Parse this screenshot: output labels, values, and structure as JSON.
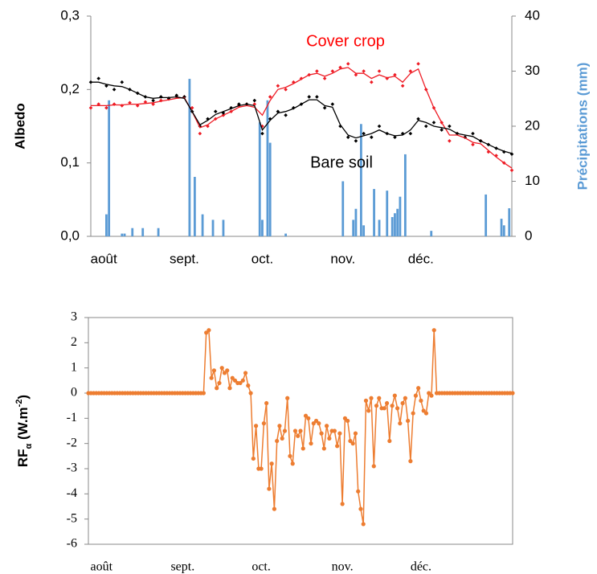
{
  "chart_data": [
    {
      "type": "combo",
      "ylabel": "Albedo",
      "y2label": "Précipitations (mm)",
      "xlim": [
        -5,
        157
      ],
      "xticks": [
        {
          "value": 0,
          "label": "août"
        },
        {
          "value": 31,
          "label": "sept."
        },
        {
          "value": 61,
          "label": "oct."
        },
        {
          "value": 92,
          "label": "nov."
        },
        {
          "value": 122,
          "label": "déc."
        }
      ],
      "ylim": [
        0,
        0.3
      ],
      "yticks": [
        {
          "value": 0,
          "label": "0,0"
        },
        {
          "value": 0.1,
          "label": "0,1"
        },
        {
          "value": 0.2,
          "label": "0,2"
        },
        {
          "value": 0.3,
          "label": "0,3"
        }
      ],
      "y2lim": [
        0,
        40
      ],
      "y2ticks": [
        0,
        10,
        20,
        30,
        40
      ],
      "x": [
        -5,
        -2,
        1,
        4,
        7,
        10,
        13,
        16,
        19,
        22,
        25,
        28,
        31,
        34,
        37,
        40,
        43,
        46,
        49,
        52,
        55,
        58,
        61,
        64,
        67,
        70,
        73,
        76,
        79,
        82,
        85,
        88,
        91,
        94,
        97,
        100,
        103,
        106,
        109,
        112,
        115,
        118,
        121,
        124,
        127,
        130,
        133,
        136,
        139,
        142,
        145,
        148,
        151,
        154,
        157
      ],
      "series": [
        {
          "type": "scatter",
          "color": "#ee1c25",
          "values": [
            0.175,
            0.18,
            0.175,
            0.18,
            0.178,
            0.182,
            0.178,
            0.183,
            0.18,
            0.185,
            0.187,
            0.19,
            0.19,
            0.175,
            0.14,
            0.15,
            0.16,
            0.165,
            0.17,
            0.178,
            0.18,
            0.18,
            0.15,
            0.19,
            0.205,
            0.2,
            0.21,
            0.215,
            0.22,
            0.225,
            0.215,
            0.225,
            0.23,
            0.235,
            0.22,
            0.225,
            0.21,
            0.225,
            0.215,
            0.22,
            0.205,
            0.225,
            0.235,
            0.2,
            0.175,
            0.155,
            0.13,
            0.14,
            0.135,
            0.125,
            0.13,
            0.115,
            0.11,
            0.1,
            0.09
          ]
        },
        {
          "type": "line",
          "color": "#ee1c25",
          "values": [
            0.178,
            0.178,
            0.178,
            0.179,
            0.179,
            0.18,
            0.18,
            0.181,
            0.182,
            0.184,
            0.186,
            0.188,
            0.189,
            0.17,
            0.148,
            0.152,
            0.16,
            0.165,
            0.17,
            0.176,
            0.178,
            0.176,
            0.165,
            0.185,
            0.2,
            0.203,
            0.208,
            0.214,
            0.22,
            0.222,
            0.218,
            0.222,
            0.228,
            0.23,
            0.222,
            0.222,
            0.215,
            0.22,
            0.216,
            0.218,
            0.21,
            0.222,
            0.228,
            0.2,
            0.175,
            0.155,
            0.138,
            0.138,
            0.134,
            0.128,
            0.126,
            0.117,
            0.108,
            0.1,
            0.093
          ]
        },
        {
          "type": "scatter",
          "color": "#000000",
          "values": [
            0.21,
            0.215,
            0.205,
            0.2,
            0.21,
            0.2,
            0.195,
            0.19,
            0.185,
            0.19,
            0.188,
            0.192,
            0.19,
            0.17,
            0.15,
            0.16,
            0.17,
            0.168,
            0.175,
            0.18,
            0.18,
            0.185,
            0.14,
            0.16,
            0.17,
            0.165,
            0.175,
            0.18,
            0.19,
            0.19,
            0.175,
            0.18,
            0.15,
            0.135,
            0.13,
            0.14,
            0.135,
            0.15,
            0.14,
            0.135,
            0.14,
            0.14,
            0.16,
            0.15,
            0.155,
            0.145,
            0.15,
            0.14,
            0.135,
            0.14,
            0.13,
            0.125,
            0.12,
            0.115,
            0.112
          ]
        },
        {
          "type": "line",
          "color": "#000000",
          "values": [
            0.21,
            0.21,
            0.207,
            0.205,
            0.204,
            0.2,
            0.195,
            0.19,
            0.188,
            0.189,
            0.189,
            0.19,
            0.188,
            0.17,
            0.152,
            0.158,
            0.166,
            0.17,
            0.174,
            0.178,
            0.18,
            0.178,
            0.145,
            0.158,
            0.168,
            0.17,
            0.174,
            0.18,
            0.186,
            0.186,
            0.178,
            0.176,
            0.152,
            0.138,
            0.134,
            0.137,
            0.14,
            0.145,
            0.14,
            0.137,
            0.138,
            0.145,
            0.158,
            0.155,
            0.15,
            0.148,
            0.146,
            0.14,
            0.138,
            0.136,
            0.13,
            0.125,
            0.12,
            0.116,
            0.113
          ]
        },
        {
          "type": "bar",
          "axis": "y2",
          "color": "#5b9bd5",
          "x": [
            1,
            2,
            7,
            8,
            11,
            15,
            21,
            33,
            35,
            38,
            42,
            46,
            60,
            61,
            63,
            64,
            70,
            92,
            96,
            97,
            99,
            100,
            104,
            106,
            109,
            111,
            112,
            113,
            114,
            116,
            126,
            147,
            153,
            154,
            156
          ],
          "values": [
            4,
            24.7,
            0.5,
            0.5,
            1.5,
            1.5,
            1.5,
            28.6,
            10.8,
            4,
            3,
            3,
            20.7,
            3,
            24.7,
            17,
            0.5,
            10,
            3,
            5,
            20.4,
            2,
            8.6,
            3,
            8.3,
            3.5,
            4.2,
            5,
            7.2,
            14.9,
            1,
            7.6,
            3.2,
            2,
            5.1
          ]
        }
      ],
      "annotations": [
        {
          "text": "Cover crop",
          "color": "#ff0000"
        },
        {
          "text": "Bare soil",
          "color": "#000000"
        }
      ]
    },
    {
      "type": "line",
      "ylabel": [
        "RF",
        "α",
        " (W.m",
        "-2",
        ")"
      ],
      "xlim": [
        -5,
        157
      ],
      "xticks": [
        {
          "value": 0,
          "label": "août"
        },
        {
          "value": 31,
          "label": "sept."
        },
        {
          "value": 61,
          "label": "oct."
        },
        {
          "value": 92,
          "label": "nov."
        },
        {
          "value": 122,
          "label": "déc."
        }
      ],
      "ylim": [
        -6,
        3
      ],
      "yticks": [
        -6,
        -5,
        -4,
        -3,
        -2,
        -1,
        0,
        1,
        2,
        3
      ],
      "color": "#ed7d31",
      "markers": true,
      "x": [
        -5,
        -4,
        -3,
        -2,
        -1,
        0,
        1,
        2,
        3,
        4,
        5,
        6,
        7,
        8,
        9,
        10,
        11,
        12,
        13,
        14,
        15,
        16,
        17,
        18,
        19,
        20,
        21,
        22,
        23,
        24,
        25,
        26,
        27,
        28,
        29,
        30,
        31,
        32,
        33,
        34,
        35,
        36,
        37,
        38,
        39,
        40,
        41,
        42,
        43,
        44,
        45,
        46,
        47,
        48,
        49,
        50,
        51,
        52,
        53,
        54,
        55,
        56,
        57,
        58,
        59,
        60,
        61,
        62,
        63,
        64,
        65,
        66,
        67,
        68,
        69,
        70,
        71,
        72,
        73,
        74,
        75,
        76,
        77,
        78,
        79,
        80,
        81,
        82,
        83,
        84,
        85,
        86,
        87,
        88,
        89,
        90,
        91,
        92,
        93,
        94,
        95,
        96,
        97,
        98,
        99,
        100,
        101,
        102,
        103,
        104,
        105,
        106,
        107,
        108,
        109,
        110,
        111,
        112,
        113,
        114,
        115,
        116,
        117,
        118,
        119,
        120,
        121,
        122,
        123,
        124,
        125,
        126,
        127,
        128,
        129,
        130,
        131,
        132,
        133,
        134,
        135,
        136,
        137,
        138,
        139,
        140,
        141,
        142,
        143,
        144,
        145,
        146,
        147,
        148,
        149,
        150,
        151,
        152,
        153,
        154,
        155,
        156,
        157
      ],
      "values": [
        0,
        0,
        0,
        0,
        0,
        0,
        0,
        0,
        0,
        0,
        0,
        0,
        0,
        0,
        0,
        0,
        0,
        0,
        0,
        0,
        0,
        0,
        0,
        0,
        0,
        0,
        0,
        0,
        0,
        0,
        0,
        0,
        0,
        0,
        0,
        0,
        0,
        0,
        0,
        0,
        0,
        0,
        0,
        0,
        0,
        2.4,
        2.5,
        0.6,
        0.9,
        0.2,
        0.4,
        1.0,
        0.8,
        0.9,
        0.2,
        0.6,
        0.5,
        0.4,
        0.4,
        0.5,
        0.8,
        0.3,
        0.0,
        -2.6,
        -1.3,
        -3.0,
        -3.0,
        -1.2,
        -0.4,
        -3.8,
        -2.8,
        -4.6,
        -1.9,
        -1.3,
        -1.8,
        -1.5,
        -0.2,
        -2.5,
        -2.8,
        -1.5,
        -1.7,
        -1.5,
        -2.2,
        -0.9,
        -1.0,
        -2.0,
        -1.2,
        -1.1,
        -1.2,
        -1.6,
        -2.2,
        -1.3,
        -1.8,
        -1.5,
        -1.5,
        -2.1,
        -1.6,
        -4.4,
        -1.0,
        -1.1,
        -1.9,
        -2.0,
        -1.6,
        -3.9,
        -4.6,
        -5.2,
        -0.3,
        -0.7,
        -0.2,
        -2.9,
        -0.5,
        -0.2,
        -0.6,
        -0.6,
        -0.4,
        -1.9,
        -0.5,
        -0.1,
        -0.6,
        -1.2,
        -0.4,
        -0.2,
        -1.1,
        -2.7,
        -0.8,
        -0.1,
        0.2,
        -0.3,
        -0.7,
        -0.8,
        0.0,
        -0.1,
        2.5,
        0,
        0,
        0,
        0,
        0,
        0,
        0,
        0,
        0,
        0,
        0,
        0,
        0,
        0,
        0,
        0,
        0,
        0,
        0,
        0,
        0,
        0,
        0,
        0,
        0,
        0,
        0,
        0,
        0,
        0
      ]
    }
  ]
}
